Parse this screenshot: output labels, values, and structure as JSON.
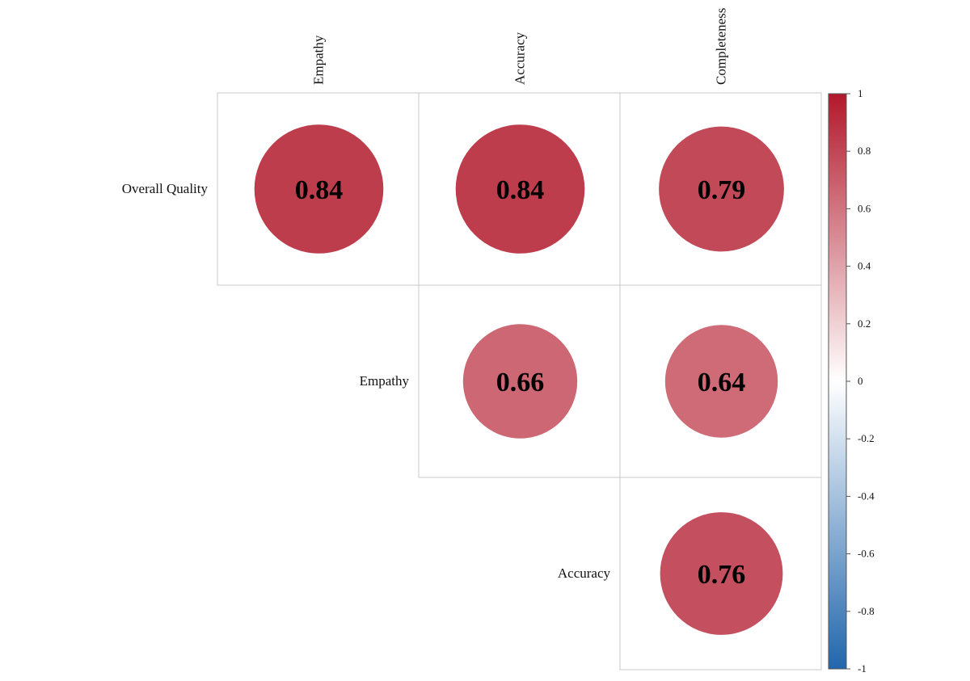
{
  "chart_data": {
    "type": "heatmap",
    "style": "correlation-circles-upper-triangle",
    "row_labels": [
      "Overall Quality",
      "Empathy",
      "Accuracy"
    ],
    "column_labels": [
      "Empathy",
      "Accuracy",
      "Completeness"
    ],
    "cells": [
      {
        "row": "Overall Quality",
        "column": "Empathy",
        "value": 0.84,
        "label": "0.84"
      },
      {
        "row": "Overall Quality",
        "column": "Accuracy",
        "value": 0.84,
        "label": "0.84"
      },
      {
        "row": "Overall Quality",
        "column": "Completeness",
        "value": 0.79,
        "label": "0.79"
      },
      {
        "row": "Empathy",
        "column": "Accuracy",
        "value": 0.66,
        "label": "0.66"
      },
      {
        "row": "Empathy",
        "column": "Completeness",
        "value": 0.64,
        "label": "0.64"
      },
      {
        "row": "Accuracy",
        "column": "Completeness",
        "value": 0.76,
        "label": "0.76"
      }
    ],
    "colorbar": {
      "range": [
        -1,
        1
      ],
      "tick_labels": [
        "1",
        "0.8",
        "0.6",
        "0.4",
        "0.2",
        "0",
        "-0.2",
        "-0.4",
        "-0.6",
        "-0.8",
        "-1"
      ],
      "colors": {
        "negative": "#2166ac",
        "mid": "#ffffff",
        "positive": "#b2182b"
      }
    }
  }
}
